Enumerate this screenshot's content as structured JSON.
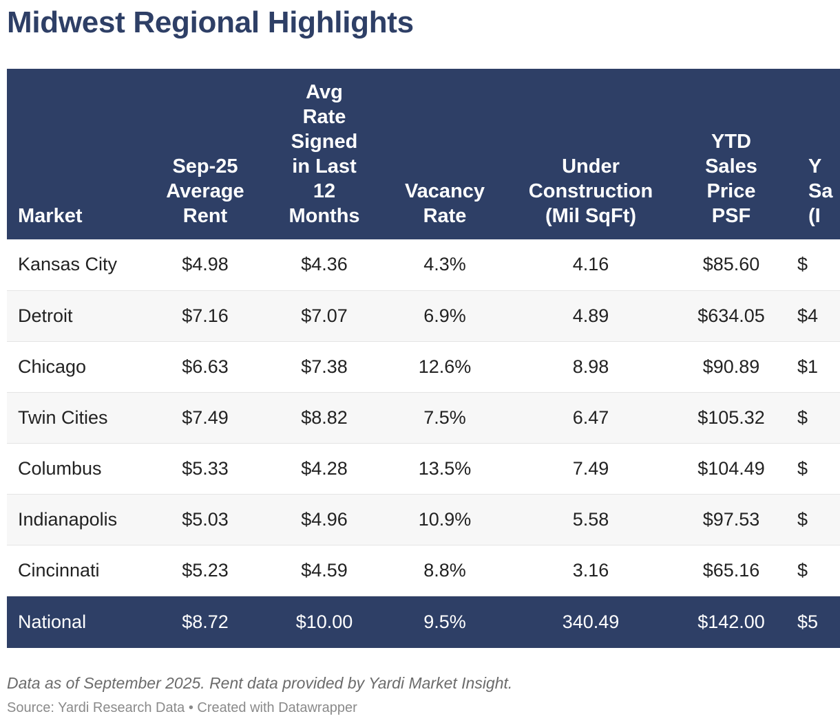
{
  "chart_data": {
    "type": "table",
    "title": "Midwest Regional Highlights",
    "columns": [
      "Market",
      "Sep-25\nAverage\nRent",
      "Avg\nRate\nSigned\nin Last\n12\nMonths",
      "Vacancy\nRate",
      "Under\nConstruction\n(Mil SqFt)",
      "YTD\nSales\nPrice\nPSF",
      "Y\nSa\n(I"
    ],
    "rows": [
      [
        "Kansas City",
        "$4.98",
        "$4.36",
        "4.3%",
        "4.16",
        "$85.60",
        "$"
      ],
      [
        "Detroit",
        "$7.16",
        "$7.07",
        "6.9%",
        "4.89",
        "$634.05",
        "$4"
      ],
      [
        "Chicago",
        "$6.63",
        "$7.38",
        "12.6%",
        "8.98",
        "$90.89",
        "$1"
      ],
      [
        "Twin Cities",
        "$7.49",
        "$8.82",
        "7.5%",
        "6.47",
        "$105.32",
        "$"
      ],
      [
        "Columbus",
        "$5.33",
        "$4.28",
        "13.5%",
        "7.49",
        "$104.49",
        "$"
      ],
      [
        "Indianapolis",
        "$5.03",
        "$4.96",
        "10.9%",
        "5.58",
        "$97.53",
        "$"
      ],
      [
        "Cincinnati",
        "$5.23",
        "$4.59",
        "8.8%",
        "3.16",
        "$65.16",
        "$"
      ]
    ],
    "total_row": [
      "National",
      "$8.72",
      "$10.00",
      "9.5%",
      "340.49",
      "$142.00",
      "$5"
    ],
    "note": "Data as of September 2025. Rent data provided by Yardi Market Insight.",
    "source": "Source: Yardi Research Data • Created with Datawrapper"
  },
  "colors": {
    "header_bg": "#2e3f66",
    "title": "#2e3f66",
    "stripe": "#f7f7f7"
  }
}
